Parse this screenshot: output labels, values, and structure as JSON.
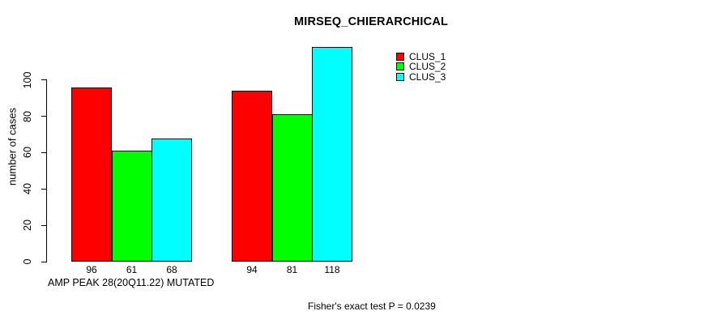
{
  "chart_data": {
    "type": "bar",
    "title": "MIRSEQ_CHIERARCHICAL",
    "ylabel": "number of cases",
    "xlabel": "AMP PEAK 28(20Q11.22) MUTATED",
    "footnote": "Fisher's exact test P = 0.0239",
    "series": [
      {
        "name": "CLUS_1",
        "color": "#ff0000",
        "values": [
          96,
          94
        ]
      },
      {
        "name": "CLUS_2",
        "color": "#00ff00",
        "values": [
          61,
          81
        ]
      },
      {
        "name": "CLUS_3",
        "color": "#00ffff",
        "values": [
          68,
          118
        ]
      }
    ],
    "groups": 2,
    "bar_value_labels": [
      [
        "96",
        "61",
        "68"
      ],
      [
        "94",
        "81",
        "118"
      ]
    ],
    "yticks": [
      0,
      20,
      40,
      60,
      80,
      100
    ],
    "ylim": [
      0,
      100
    ],
    "grid": false,
    "legend_position": "top-right",
    "axis_color": "#000000",
    "bar_border_color": "#000000",
    "background_color": "#ffffff"
  }
}
